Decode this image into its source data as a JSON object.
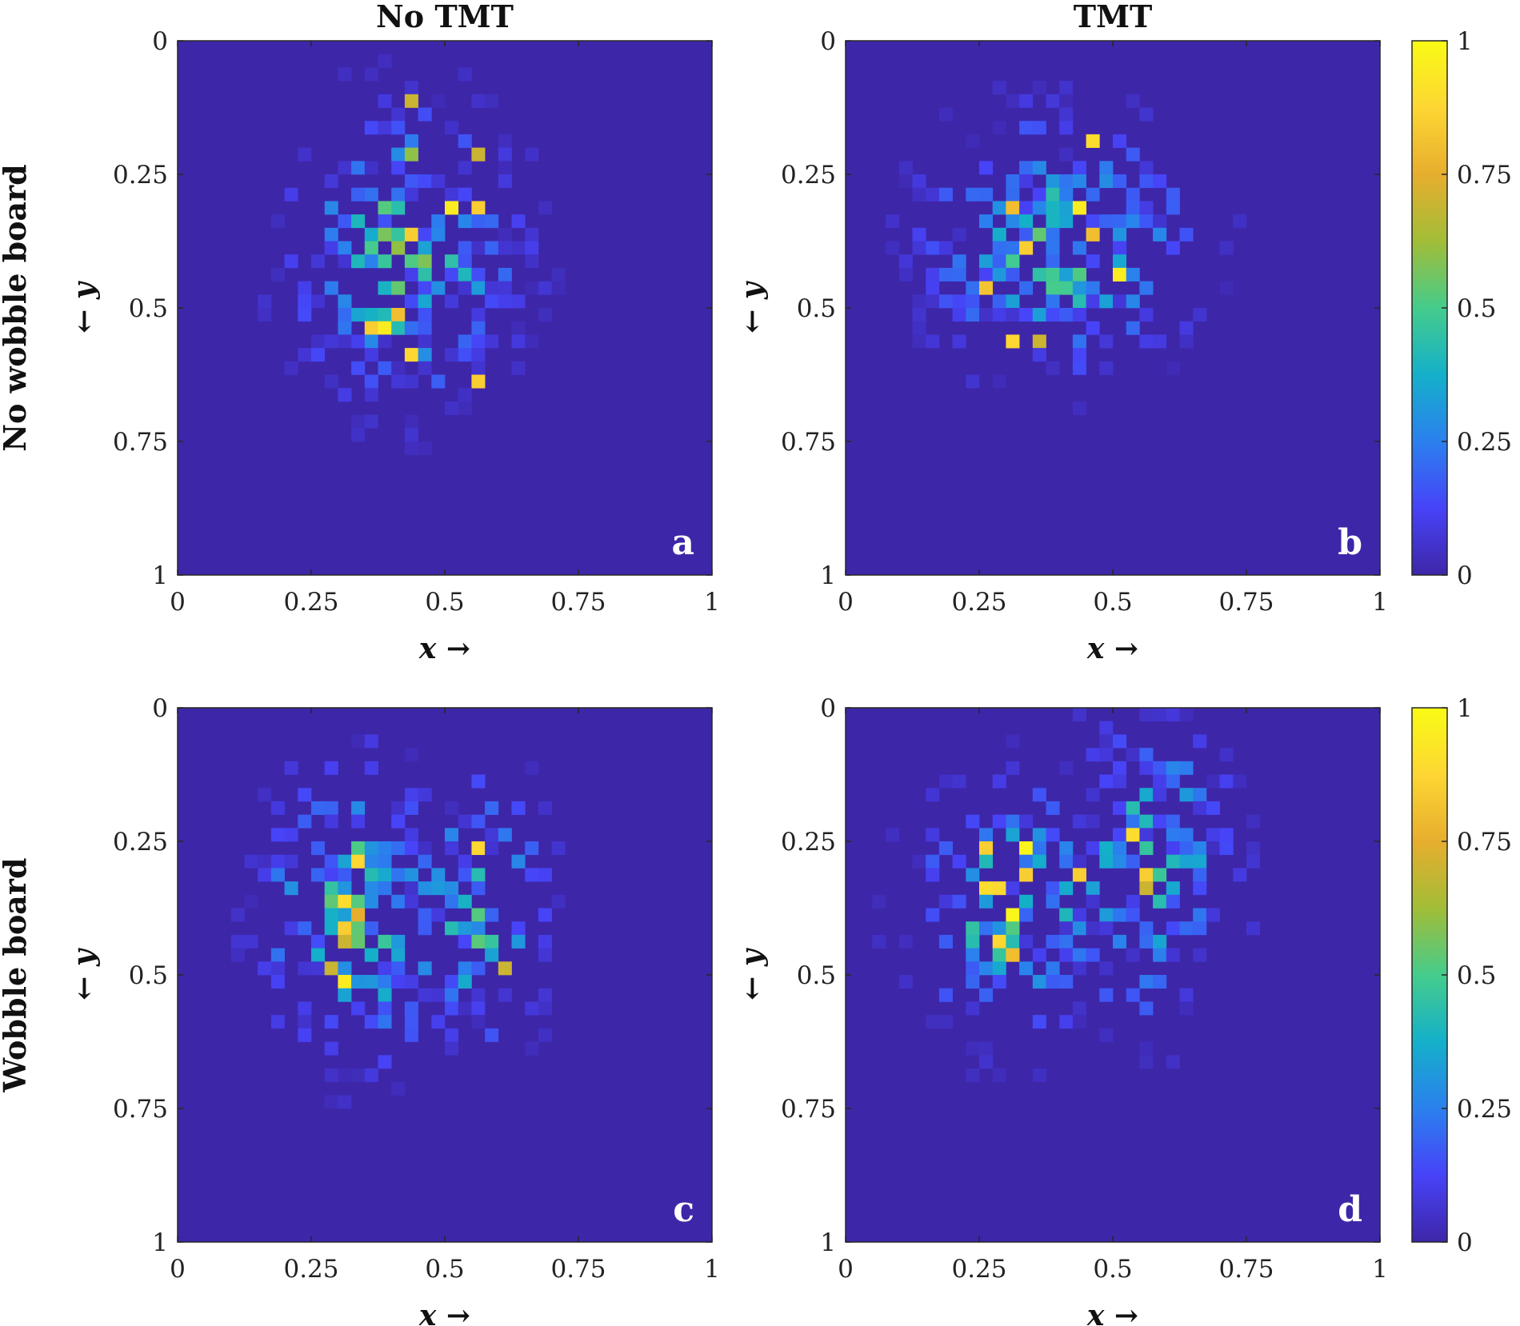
{
  "colors": {
    "colormap": [
      "#3e26a8",
      "#4743f8",
      "#2b80ee",
      "#14b0c9",
      "#45cc8c",
      "#a2bd37",
      "#e7ae2e",
      "#fdd633",
      "#f9fb15"
    ],
    "background": "#3e26a8"
  },
  "column_titles": [
    "No TMT",
    "TMT"
  ],
  "row_titles": [
    "No wobble board",
    "Wobble board"
  ],
  "axis_labels": {
    "x": "x →",
    "y": "← y"
  },
  "x_tick_labels": [
    "0",
    "0.25",
    "0.5",
    "0.75",
    "1"
  ],
  "y_tick_labels": [
    "0",
    "0.25",
    "0.5",
    "0.75",
    "1"
  ],
  "colorbar_tick_labels": [
    "0",
    "0.25",
    "0.5",
    "0.75",
    "1"
  ],
  "chart_data": [
    {
      "type": "heatmap",
      "panel": "a",
      "condition": "No TMT, No wobble board",
      "xlim": [
        0,
        1
      ],
      "ylim": [
        0,
        1
      ],
      "y_axis": "reversed",
      "bins": [
        40,
        40
      ],
      "clim": [
        0,
        1
      ],
      "colormap": "parula",
      "blobs": [
        [
          0.42,
          0.4,
          0.13,
          0.16,
          0.42
        ]
      ],
      "hotspots": [
        [
          0.51,
          0.31,
          0.95
        ],
        [
          0.55,
          0.31,
          0.85
        ],
        [
          0.43,
          0.36,
          0.85
        ],
        [
          0.39,
          0.54,
          0.95
        ],
        [
          0.36,
          0.53,
          0.85
        ],
        [
          0.42,
          0.52,
          0.8
        ],
        [
          0.44,
          0.59,
          0.88
        ],
        [
          0.55,
          0.63,
          0.85
        ],
        [
          0.44,
          0.11,
          0.7
        ],
        [
          0.55,
          0.2,
          0.7
        ],
        [
          0.44,
          0.21,
          0.6
        ]
      ]
    },
    {
      "type": "heatmap",
      "panel": "b",
      "condition": "TMT, No wobble board",
      "xlim": [
        0,
        1
      ],
      "ylim": [
        0,
        1
      ],
      "y_axis": "reversed",
      "bins": [
        40,
        40
      ],
      "clim": [
        0,
        1
      ],
      "colormap": "parula",
      "blobs": [
        [
          0.4,
          0.38,
          0.15,
          0.14,
          0.4
        ]
      ],
      "hotspots": [
        [
          0.47,
          0.19,
          0.9
        ],
        [
          0.44,
          0.31,
          0.95
        ],
        [
          0.32,
          0.32,
          0.8
        ],
        [
          0.34,
          0.39,
          0.85
        ],
        [
          0.46,
          0.36,
          0.8
        ],
        [
          0.51,
          0.43,
          0.95
        ],
        [
          0.26,
          0.45,
          0.82
        ],
        [
          0.31,
          0.55,
          0.88
        ],
        [
          0.35,
          0.57,
          0.7
        ]
      ]
    },
    {
      "type": "heatmap",
      "panel": "c",
      "condition": "No TMT, Wobble board",
      "xlim": [
        0,
        1
      ],
      "ylim": [
        0,
        1
      ],
      "y_axis": "reversed",
      "bins": [
        40,
        40
      ],
      "clim": [
        0,
        1
      ],
      "colormap": "parula",
      "blobs": [
        [
          0.34,
          0.38,
          0.11,
          0.16,
          0.45
        ],
        [
          0.56,
          0.38,
          0.08,
          0.15,
          0.38
        ]
      ],
      "hotspots": [
        [
          0.31,
          0.36,
          0.9
        ],
        [
          0.31,
          0.4,
          0.85
        ],
        [
          0.31,
          0.51,
          0.95
        ],
        [
          0.34,
          0.29,
          0.88
        ],
        [
          0.55,
          0.27,
          0.88
        ],
        [
          0.28,
          0.48,
          0.7
        ],
        [
          0.6,
          0.49,
          0.7
        ],
        [
          0.34,
          0.38,
          0.75
        ],
        [
          0.3,
          0.44,
          0.7
        ]
      ]
    },
    {
      "type": "heatmap",
      "panel": "d",
      "condition": "TMT, Wobble board",
      "xlim": [
        0,
        1
      ],
      "ylim": [
        0,
        1
      ],
      "y_axis": "reversed",
      "bins": [
        40,
        40
      ],
      "clim": [
        0,
        1
      ],
      "colormap": "parula",
      "blobs": [
        [
          0.31,
          0.38,
          0.11,
          0.14,
          0.42
        ],
        [
          0.56,
          0.3,
          0.1,
          0.17,
          0.4
        ]
      ],
      "hotspots": [
        [
          0.33,
          0.27,
          0.98
        ],
        [
          0.31,
          0.38,
          0.98
        ],
        [
          0.27,
          0.34,
          0.9
        ],
        [
          0.29,
          0.34,
          0.88
        ],
        [
          0.34,
          0.31,
          0.85
        ],
        [
          0.29,
          0.43,
          0.88
        ],
        [
          0.53,
          0.23,
          0.9
        ],
        [
          0.43,
          0.31,
          0.85
        ],
        [
          0.57,
          0.31,
          0.85
        ],
        [
          0.26,
          0.27,
          0.85
        ],
        [
          0.3,
          0.45,
          0.8
        ],
        [
          0.56,
          0.33,
          0.7
        ]
      ]
    }
  ]
}
